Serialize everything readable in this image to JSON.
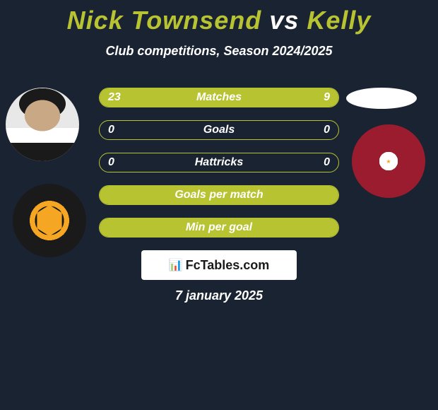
{
  "header": {
    "player1_name": "Nick Townsend",
    "player1_color": "#b8c332",
    "vs": "vs",
    "vs_color": "#ffffff",
    "player2_name": "Kelly",
    "player2_color": "#b8c332"
  },
  "subtitle": "Club competitions, Season 2024/2025",
  "bars": {
    "bar_bg": "#1a2332",
    "border_color": "#b8c332",
    "fill_color": "#b8c332",
    "rows": [
      {
        "label": "Matches",
        "left": "23",
        "right": "9",
        "left_pct": 70,
        "right_pct": 30
      },
      {
        "label": "Goals",
        "left": "0",
        "right": "0",
        "left_pct": 0,
        "right_pct": 0
      },
      {
        "label": "Hattricks",
        "left": "0",
        "right": "0",
        "left_pct": 0,
        "right_pct": 0
      },
      {
        "label": "Goals per match",
        "left": "",
        "right": "",
        "left_pct": 100,
        "right_pct": 0
      },
      {
        "label": "Min per goal",
        "left": "",
        "right": "",
        "left_pct": 100,
        "right_pct": 0
      }
    ]
  },
  "watermark": "FcTables.com",
  "date": "7 january 2025",
  "colors": {
    "background": "#1a2332",
    "accent": "#b8c332",
    "text": "#ffffff"
  }
}
